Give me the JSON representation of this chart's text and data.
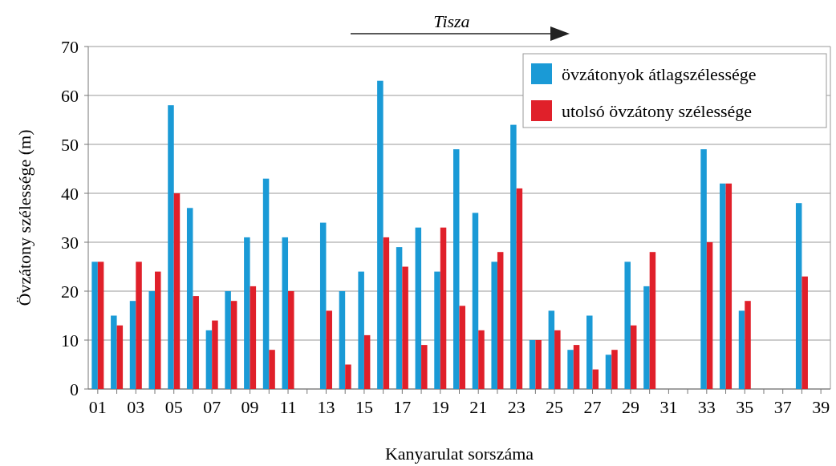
{
  "chart_data": {
    "type": "bar",
    "xlabel": "Kanyarulat sorszáma",
    "ylabel": "Övzátony szélessége (m)",
    "annotations": [
      "Tisza"
    ],
    "categories": [
      "01",
      null,
      "03",
      null,
      "05",
      null,
      "07",
      null,
      "09",
      null,
      "11",
      null,
      "13",
      null,
      "15",
      null,
      "17",
      null,
      "19",
      null,
      "21",
      null,
      "23",
      null,
      "25",
      null,
      "27",
      null,
      "29",
      null,
      "31",
      null,
      "33",
      null,
      "35",
      null,
      "37",
      null,
      "39"
    ],
    "series": [
      {
        "name": "övzátonyok átlagszélessége",
        "color": "#1a9ad6",
        "values": [
          26,
          15,
          18,
          20,
          58,
          37,
          12,
          20,
          31,
          43,
          31,
          null,
          34,
          20,
          24,
          63,
          29,
          33,
          24,
          49,
          36,
          26,
          54,
          10,
          16,
          8,
          15,
          7,
          26,
          21,
          null,
          null,
          49,
          42,
          16,
          null,
          null,
          38,
          null
        ]
      },
      {
        "name": "utolsó övzátony szélessége",
        "color": "#e0202a",
        "values": [
          26,
          13,
          26,
          24,
          40,
          19,
          14,
          18,
          21,
          8,
          20,
          null,
          16,
          5,
          11,
          31,
          25,
          9,
          33,
          17,
          12,
          28,
          41,
          10,
          12,
          9,
          4,
          8,
          13,
          28,
          null,
          null,
          30,
          42,
          18,
          null,
          null,
          23,
          null
        ]
      }
    ],
    "ylim": [
      0,
      70
    ],
    "yticks": [
      0,
      10,
      20,
      30,
      40,
      50,
      60,
      70
    ],
    "grid": "y",
    "legend": "top right"
  }
}
